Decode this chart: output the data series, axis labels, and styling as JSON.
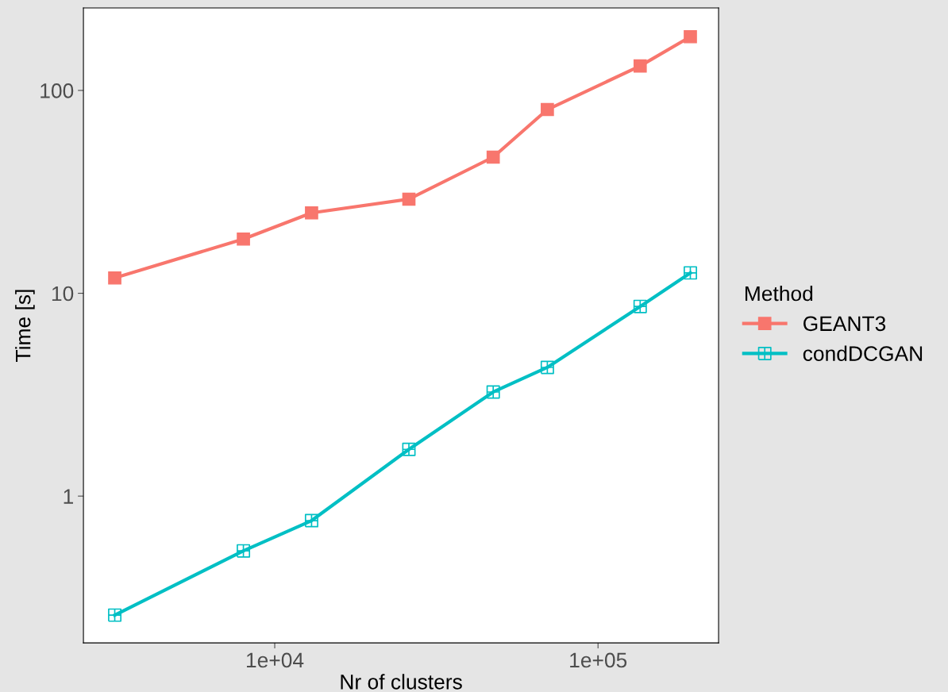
{
  "chart_data": {
    "type": "line",
    "xlabel": "Nr of clusters",
    "ylabel": "Time [s]",
    "legend_title": "Method",
    "log": "xy",
    "grid": false,
    "legend": "right",
    "line_style": "solid",
    "x": [
      3200,
      8000,
      13000,
      26000,
      47400,
      69700,
      135000,
      193000
    ],
    "xlim": [
      2560,
      236000
    ],
    "xticks": [
      {
        "value": 10000,
        "label": "1e+04"
      },
      {
        "value": 100000,
        "label": "1e+05"
      }
    ],
    "ylim": [
      0.189,
      255
    ],
    "yticks": [
      1,
      10,
      100
    ],
    "series": [
      {
        "name": "GEANT3",
        "color": "#f8766d",
        "marker": "square",
        "values": [
          11.9,
          18.5,
          24.9,
          29.1,
          46.9,
          80.5,
          132,
          184
        ]
      },
      {
        "name": "condDCGAN",
        "color": "#00bfc4",
        "marker": "cross",
        "values": [
          0.259,
          0.537,
          0.757,
          1.7,
          3.26,
          4.31,
          8.61,
          12.6
        ]
      }
    ]
  }
}
